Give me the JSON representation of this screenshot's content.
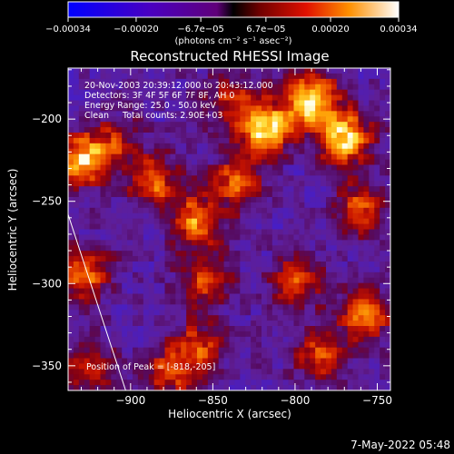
{
  "chart_data": {
    "type": "heatmap",
    "title": "Reconstructed RHESSI Image",
    "xlabel": "Heliocentric X (arcsec)",
    "ylabel": "Heliocentric Y (arcsec)",
    "xlim": [
      -938,
      -742
    ],
    "ylim": [
      -365,
      -169
    ],
    "x_ticks": [
      -900,
      -850,
      -800,
      -750
    ],
    "x_tick_labels": [
      "−900",
      "−850",
      "−800",
      "−750"
    ],
    "y_ticks": [
      -350,
      -300,
      -250,
      -200
    ],
    "y_tick_labels": [
      "−350",
      "−300",
      "−250",
      "−200"
    ],
    "colorbar": {
      "range": [
        -0.00034,
        0.00034
      ],
      "ticks": [
        -0.00034,
        -0.0002,
        -6.7e-05,
        6.7e-05,
        0.0002,
        0.00034
      ],
      "tick_labels": [
        "−0.00034",
        "−0.00020",
        "−6.7e−05",
        "6.7e−05",
        "0.00020",
        "0.00034"
      ],
      "unit_label": "(photons cm⁻² s⁻¹ asec⁻²)"
    },
    "annotations": [
      "20-Nov-2003 20:39:12.000 to 20:43:12.000",
      "Detectors: 3F 4F 5F 6F 7F 8F, AH 0",
      "Energy Range: 25.0 - 50.0 keV",
      "Clean     Total counts: 2.90E+03"
    ],
    "peak_label": "Position of Peak = [-818,-205]",
    "peak_position": [
      -818,
      -205
    ],
    "limb_line": [
      [
        -938,
        -258
      ],
      [
        -903,
        -365
      ]
    ],
    "grid": false,
    "hotspots": [
      {
        "x": -790,
        "y": -188,
        "v": 1.0
      },
      {
        "x": -770,
        "y": -212,
        "v": 0.95
      },
      {
        "x": -818,
        "y": -205,
        "v": 0.95
      },
      {
        "x": -860,
        "y": -262,
        "v": 0.75
      },
      {
        "x": -885,
        "y": -238,
        "v": 0.6
      },
      {
        "x": -835,
        "y": -238,
        "v": 0.6
      },
      {
        "x": -910,
        "y": -215,
        "v": 0.5
      },
      {
        "x": -930,
        "y": -225,
        "v": 0.8
      },
      {
        "x": -928,
        "y": -295,
        "v": 0.65
      },
      {
        "x": -855,
        "y": -300,
        "v": 0.55
      },
      {
        "x": -800,
        "y": -300,
        "v": 0.55
      },
      {
        "x": -760,
        "y": -255,
        "v": 0.6
      },
      {
        "x": -758,
        "y": -320,
        "v": 0.7
      },
      {
        "x": -785,
        "y": -345,
        "v": 0.55
      },
      {
        "x": -860,
        "y": -340,
        "v": 0.6
      },
      {
        "x": -878,
        "y": -355,
        "v": 0.5
      },
      {
        "x": -925,
        "y": -350,
        "v": 0.45
      },
      {
        "x": -840,
        "y": -190,
        "v": 0.45
      }
    ]
  },
  "footer_timestamp": "7-May-2022 05:48"
}
